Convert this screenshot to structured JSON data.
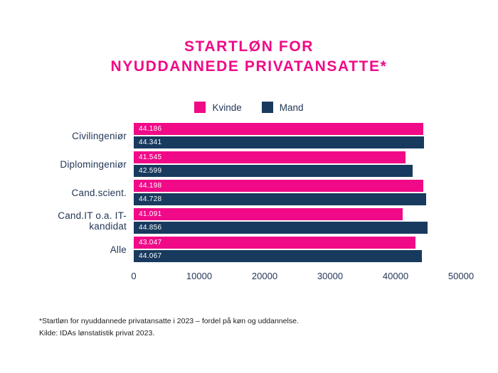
{
  "title": {
    "line1": "STARTLØN FOR",
    "line2": "NYUDDANNEDE PRIVATANSATTE*"
  },
  "colors": {
    "kvinde_pink": "#F00A87",
    "mand_navy": "#183A5E",
    "title_pink": "#F00A87",
    "axis_text": "#233757",
    "bar_value_text": "#ffffff",
    "background": "#ffffff"
  },
  "legend": [
    {
      "label": "Kvinde",
      "color": "#F00A87"
    },
    {
      "label": "Mand",
      "color": "#183A5E"
    }
  ],
  "chart_data": {
    "type": "bar",
    "orientation": "horizontal",
    "title": "Startløn for nyuddannede privatansatte",
    "categories": [
      "Civilingeniør",
      "Diplomingeniør",
      "Cand.scient.",
      "Cand.IT o.a. IT-kandidat",
      "Alle"
    ],
    "series": [
      {
        "name": "Kvinde",
        "color": "#F00A87",
        "values": [
          44186,
          41545,
          44198,
          41091,
          43047
        ],
        "labels": [
          "44.186",
          "41.545",
          "44.198",
          "41.091",
          "43.047"
        ]
      },
      {
        "name": "Mand",
        "color": "#183A5E",
        "values": [
          44341,
          42599,
          44728,
          44856,
          44067
        ],
        "labels": [
          "44.341",
          "42.599",
          "44.728",
          "44.856",
          "44.067"
        ]
      }
    ],
    "x_ticks": [
      "0",
      "10000",
      "20000",
      "30000",
      "40000",
      "50000"
    ],
    "xlim": [
      0,
      50000
    ],
    "grid": false,
    "legend_position": "top",
    "value_labels": "inside-left"
  },
  "footnote": {
    "line1": "*Startløn for nyuddannede privatansatte i 2023 – fordel på køn og uddannelse.",
    "line2": "Kilde: IDAs lønstatistik privat 2023."
  }
}
